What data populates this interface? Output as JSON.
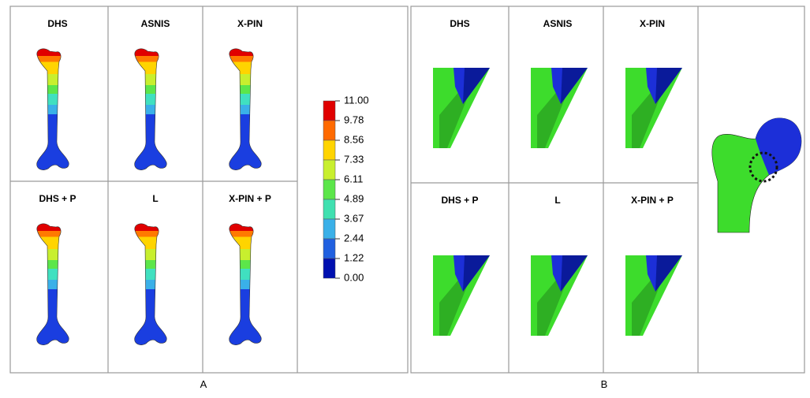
{
  "panel_a": {
    "caption": "A",
    "cells": [
      "DHS",
      "ASNIS",
      "X-PIN",
      "DHS + P",
      "L",
      "X-PIN + P"
    ],
    "legend": [
      "11.00",
      "9.78",
      "8.56",
      "7.33",
      "6.11",
      "4.89",
      "3.67",
      "2.44",
      "1.22",
      "0.00"
    ]
  },
  "panel_b": {
    "caption": "B",
    "cells": [
      "DHS",
      "ASNIS",
      "X-PIN",
      "DHS + P",
      "L",
      "X-PIN + P"
    ]
  }
}
